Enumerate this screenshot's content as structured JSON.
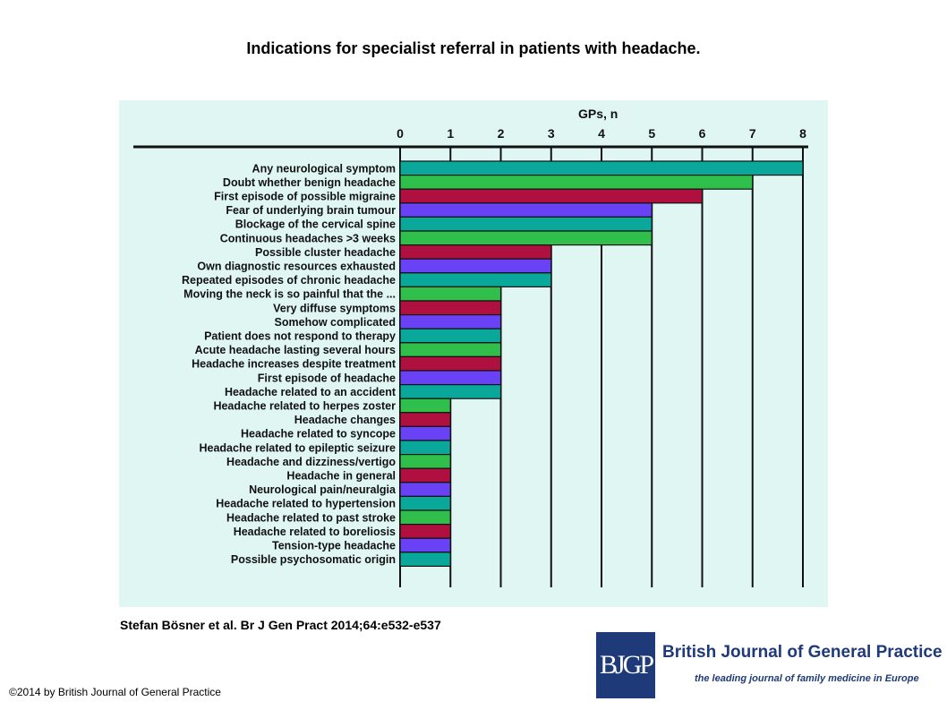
{
  "title": "Indications for specialist referral in patients with headache.",
  "citation": "Stefan Bösner et al. Br J Gen Pract 2014;64:e532-e537",
  "copyright": "©2014 by British Journal of General Practice",
  "logo": {
    "mark": "BJGP",
    "name": "British Journal of General Practice",
    "tagline": "the leading journal of family medicine in Europe"
  },
  "colors": {
    "background": "#dff6f3",
    "teal": "#0aa89a",
    "green": "#2fbf4a",
    "crimson": "#b0103f",
    "violet": "#6a42f5",
    "brand": "#1f3a78"
  },
  "chart_data": {
    "type": "bar",
    "orientation": "horizontal",
    "title": "Indications for specialist referral in patients with headache.",
    "xlabel": "GPs, n",
    "xlim": [
      0,
      8
    ],
    "xticks": [
      0,
      1,
      2,
      3,
      4,
      5,
      6,
      7,
      8
    ],
    "xaxis_position": "top",
    "grid": true,
    "categories": [
      "Any neurological symptom",
      "Doubt whether benign headache",
      "First episode of possible migraine",
      "Fear of underlying brain tumour",
      "Blockage of the cervical spine",
      "Continuous headaches >3 weeks",
      "Possible cluster headache",
      "Own diagnostic resources exhausted",
      "Repeated episodes of chronic headache",
      "Moving the neck is so painful that the ...",
      "Very diffuse symptoms",
      "Somehow complicated",
      "Patient does not respond to therapy",
      "Acute headache lasting several hours",
      "Headache increases despite treatment",
      "First episode of headache",
      "Headache related to an accident",
      "Headache related to herpes zoster",
      "Headache changes",
      "Headache related to syncope",
      "Headache related to epileptic seizure",
      "Headache and dizziness/vertigo",
      "Headache in general",
      "Neurological pain/neuralgia",
      "Headache related to hypertension",
      "Headache related to past stroke",
      "Headache related to boreliosis",
      "Tension-type headache",
      "Possible psychosomatic origin"
    ],
    "values": [
      8,
      7,
      6,
      5,
      5,
      5,
      3,
      3,
      3,
      2,
      2,
      2,
      2,
      2,
      2,
      2,
      2,
      1,
      1,
      1,
      1,
      1,
      1,
      1,
      1,
      1,
      1,
      1,
      1
    ],
    "bar_colors": [
      "teal",
      "green",
      "crimson",
      "violet",
      "teal",
      "green",
      "crimson",
      "violet",
      "teal",
      "green",
      "crimson",
      "violet",
      "teal",
      "green",
      "crimson",
      "violet",
      "teal",
      "green",
      "crimson",
      "violet",
      "teal",
      "green",
      "crimson",
      "violet",
      "teal",
      "green",
      "crimson",
      "violet",
      "teal"
    ]
  }
}
